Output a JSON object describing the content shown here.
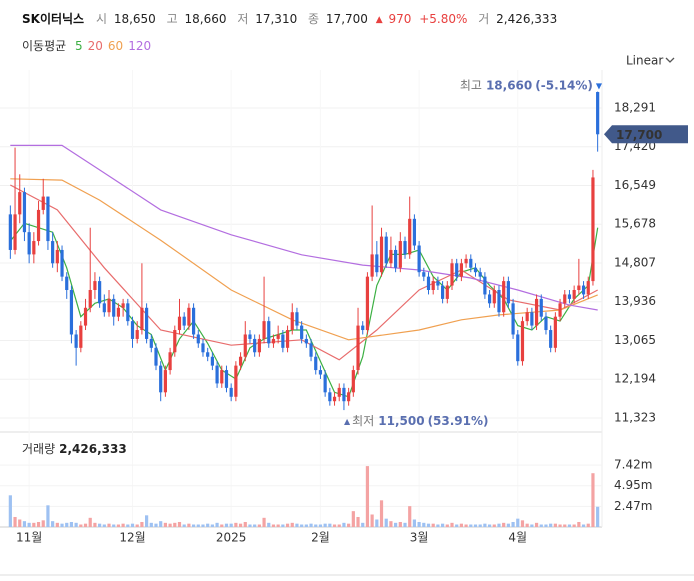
{
  "header": {
    "name": "SK이터닉스",
    "open_label": "시",
    "open": "18,650",
    "high_label": "고",
    "high": "18,660",
    "low_label": "저",
    "low": "17,310",
    "close_label": "종",
    "close": "17,700",
    "change_mark": "▲",
    "change": "970",
    "change_pct": "+5.80%",
    "volume_label": "거",
    "volume": "2,426,333"
  },
  "ma_title": "이동평균",
  "scale_selector": "Linear",
  "chart_data": [
    {
      "type": "candlestick",
      "xlim": [
        -0.5,
        125.5
      ],
      "xticks": [
        {
          "value": 4,
          "label": "11월"
        },
        {
          "value": 26,
          "label": "12월"
        },
        {
          "value": 47,
          "label": "2025"
        },
        {
          "value": 66,
          "label": "2월"
        },
        {
          "value": 87,
          "label": "3월"
        },
        {
          "value": 108,
          "label": "4월"
        }
      ],
      "ylim": [
        11053,
        19145
      ],
      "yticks": [
        {
          "value": 11323,
          "label": "11,323"
        },
        {
          "value": 12194,
          "label": "12,194"
        },
        {
          "value": 13065,
          "label": "13,065"
        },
        {
          "value": 13936,
          "label": "13,936"
        },
        {
          "value": 14807,
          "label": "14,807"
        },
        {
          "value": 15678,
          "label": "15,678"
        },
        {
          "value": 16549,
          "label": "16,549"
        },
        {
          "value": 17420,
          "label": "17,420"
        },
        {
          "value": 18291,
          "label": "18,291"
        }
      ],
      "grid": true,
      "up_color": "#e8403f",
      "down_color": "#2a6fdb",
      "ohlc": [
        [
          15900,
          16100,
          14900,
          15100
        ],
        [
          15100,
          17400,
          15000,
          15900
        ],
        [
          15900,
          16800,
          15700,
          16400
        ],
        [
          16400,
          16500,
          15300,
          15500
        ],
        [
          15500,
          15700,
          14800,
          15000
        ],
        [
          15000,
          15500,
          14800,
          15300
        ],
        [
          15300,
          16200,
          15200,
          16000
        ],
        [
          16000,
          16700,
          15900,
          16300
        ],
        [
          16300,
          16300,
          15100,
          15300
        ],
        [
          15300,
          15500,
          14700,
          14800
        ],
        [
          14800,
          15300,
          14600,
          15100
        ],
        [
          15100,
          15200,
          14400,
          14500
        ],
        [
          14500,
          14600,
          14000,
          14200
        ],
        [
          14200,
          14300,
          13000,
          13200
        ],
        [
          13200,
          13300,
          12500,
          12900
        ],
        [
          12900,
          13500,
          12800,
          13400
        ],
        [
          13400,
          14000,
          13300,
          13800
        ],
        [
          13800,
          15600,
          13700,
          14200
        ],
        [
          14200,
          14600,
          14000,
          14400
        ],
        [
          14400,
          14500,
          13800,
          13900
        ],
        [
          13900,
          14100,
          13600,
          13700
        ],
        [
          13700,
          14200,
          13600,
          14000
        ],
        [
          14000,
          14100,
          13400,
          13600
        ],
        [
          13600,
          13900,
          13500,
          13800
        ],
        [
          13800,
          14000,
          13600,
          13900
        ],
        [
          13900,
          14000,
          13400,
          13500
        ],
        [
          13500,
          13600,
          12900,
          13100
        ],
        [
          13100,
          13500,
          13000,
          13300
        ],
        [
          13300,
          14800,
          13200,
          13800
        ],
        [
          13800,
          13900,
          13000,
          13100
        ],
        [
          13100,
          13200,
          12800,
          12900
        ],
        [
          12900,
          13000,
          12400,
          12500
        ],
        [
          12500,
          12600,
          11700,
          11900
        ],
        [
          11900,
          12500,
          11800,
          12400
        ],
        [
          12400,
          12900,
          12300,
          12800
        ],
        [
          12800,
          13400,
          12700,
          13300
        ],
        [
          13300,
          14000,
          13200,
          13600
        ],
        [
          13600,
          13700,
          13300,
          13400
        ],
        [
          13400,
          13900,
          13300,
          13800
        ],
        [
          13800,
          13900,
          13100,
          13200
        ],
        [
          13200,
          13300,
          12900,
          13000
        ],
        [
          13000,
          13100,
          12700,
          12800
        ],
        [
          12800,
          12900,
          12600,
          12700
        ],
        [
          12700,
          12800,
          12400,
          12500
        ],
        [
          12500,
          12600,
          12000,
          12100
        ],
        [
          12100,
          12500,
          12000,
          12400
        ],
        [
          12400,
          12500,
          11900,
          12000
        ],
        [
          12000,
          12100,
          11700,
          11800
        ],
        [
          11800,
          12600,
          11700,
          12500
        ],
        [
          12500,
          12800,
          12400,
          12700
        ],
        [
          12700,
          13500,
          12600,
          13200
        ],
        [
          13200,
          13300,
          13000,
          13100
        ],
        [
          13100,
          13200,
          12700,
          12800
        ],
        [
          12800,
          13200,
          12700,
          13100
        ],
        [
          13100,
          14500,
          13000,
          13500
        ],
        [
          13500,
          13600,
          12900,
          13000
        ],
        [
          13000,
          13200,
          12900,
          13100
        ],
        [
          13100,
          13400,
          13000,
          13200
        ],
        [
          13200,
          13300,
          12800,
          12900
        ],
        [
          12900,
          13400,
          12800,
          13300
        ],
        [
          13300,
          13900,
          13200,
          13700
        ],
        [
          13700,
          13800,
          13300,
          13400
        ],
        [
          13400,
          13500,
          13000,
          13100
        ],
        [
          13100,
          13200,
          12900,
          13000
        ],
        [
          13000,
          13100,
          12600,
          12700
        ],
        [
          12700,
          12800,
          12300,
          12400
        ],
        [
          12400,
          12500,
          12200,
          12300
        ],
        [
          12300,
          12400,
          11800,
          11900
        ],
        [
          11900,
          12000,
          11600,
          11700
        ],
        [
          11700,
          11900,
          11600,
          11800
        ],
        [
          11800,
          12100,
          11700,
          12000
        ],
        [
          12000,
          12100,
          11500,
          11700
        ],
        [
          11700,
          12000,
          11600,
          11900
        ],
        [
          11900,
          12500,
          11800,
          12400
        ],
        [
          12400,
          13800,
          12300,
          13400
        ],
        [
          13400,
          13500,
          13200,
          13300
        ],
        [
          13300,
          14600,
          13200,
          14500
        ],
        [
          14500,
          16100,
          14400,
          15000
        ],
        [
          15000,
          15300,
          14500,
          14600
        ],
        [
          14600,
          15600,
          14500,
          15400
        ],
        [
          15400,
          15500,
          14700,
          14800
        ],
        [
          14800,
          15400,
          14700,
          15100
        ],
        [
          15100,
          15200,
          14600,
          14700
        ],
        [
          14700,
          15500,
          14600,
          15300
        ],
        [
          15300,
          15400,
          14900,
          15000
        ],
        [
          15000,
          16300,
          14900,
          15800
        ],
        [
          15800,
          15900,
          15100,
          15200
        ],
        [
          15200,
          15300,
          14500,
          14600
        ],
        [
          14600,
          14700,
          14400,
          14500
        ],
        [
          14500,
          14600,
          14100,
          14200
        ],
        [
          14200,
          14500,
          14100,
          14400
        ],
        [
          14400,
          14500,
          14200,
          14300
        ],
        [
          14300,
          14400,
          13900,
          14000
        ],
        [
          14000,
          14400,
          13900,
          14300
        ],
        [
          14300,
          14900,
          14200,
          14800
        ],
        [
          14800,
          14900,
          14400,
          14500
        ],
        [
          14500,
          14900,
          14400,
          14800
        ],
        [
          14800,
          15000,
          14700,
          14900
        ],
        [
          14900,
          15000,
          14600,
          14700
        ],
        [
          14700,
          14800,
          14500,
          14600
        ],
        [
          14600,
          14700,
          14400,
          14500
        ],
        [
          14500,
          14600,
          14000,
          14100
        ],
        [
          14100,
          14200,
          13800,
          13900
        ],
        [
          13900,
          14300,
          13800,
          14200
        ],
        [
          14200,
          14300,
          13600,
          13700
        ],
        [
          13700,
          14500,
          13600,
          14400
        ],
        [
          14400,
          14500,
          13800,
          13900
        ],
        [
          13900,
          14000,
          13100,
          13200
        ],
        [
          13200,
          13300,
          12500,
          12600
        ],
        [
          12600,
          13600,
          12500,
          13500
        ],
        [
          13500,
          13800,
          13400,
          13700
        ],
        [
          13700,
          13800,
          13300,
          13400
        ],
        [
          13400,
          14100,
          13300,
          14000
        ],
        [
          14000,
          14100,
          13500,
          13600
        ],
        [
          13600,
          13700,
          13200,
          13300
        ],
        [
          13300,
          13400,
          12800,
          12900
        ],
        [
          12900,
          13700,
          12800,
          13600
        ],
        [
          13600,
          14000,
          13500,
          13900
        ],
        [
          13900,
          14200,
          13800,
          14100
        ],
        [
          14100,
          14200,
          13900,
          14000
        ],
        [
          14000,
          14300,
          13900,
          14200
        ],
        [
          14200,
          14900,
          14100,
          14300
        ],
        [
          14300,
          14400,
          14000,
          14100
        ],
        [
          14100,
          14500,
          14000,
          14400
        ],
        [
          14400,
          16900,
          14300,
          16730
        ],
        [
          18650,
          18660,
          17310,
          17700
        ]
      ],
      "series": [
        {
          "name": "5",
          "color": "#3cb043",
          "x": [
            0,
            3,
            6,
            9,
            12,
            15,
            18,
            21,
            24,
            27,
            30,
            33,
            36,
            39,
            42,
            45,
            48,
            51,
            54,
            57,
            60,
            63,
            66,
            69,
            72,
            75,
            78,
            81,
            84,
            87,
            90,
            93,
            96,
            99,
            102,
            105,
            108,
            111,
            114,
            117,
            120,
            123,
            125
          ],
          "values": [
            15300,
            15700,
            15600,
            15500,
            14700,
            13600,
            13900,
            14000,
            13800,
            13400,
            13200,
            12400,
            13100,
            13500,
            13000,
            12400,
            12200,
            12900,
            13100,
            13200,
            13300,
            13300,
            12600,
            11900,
            11800,
            12700,
            14300,
            15000,
            15000,
            15100,
            14500,
            14200,
            14600,
            14700,
            14300,
            14000,
            13400,
            13300,
            13600,
            13500,
            14000,
            14300,
            15600
          ]
        },
        {
          "name": "20",
          "color": "#e86c6c",
          "x": [
            0,
            10,
            20,
            32,
            47,
            62,
            70,
            78,
            87,
            96,
            106,
            117,
            125
          ],
          "values": [
            16560,
            16000,
            14700,
            13300,
            12960,
            13080,
            12630,
            13300,
            14200,
            14650,
            13980,
            13750,
            14200
          ]
        },
        {
          "name": "60",
          "color": "#f0a050",
          "x": [
            0,
            11,
            19,
            32,
            47,
            60,
            72,
            87,
            96,
            104,
            117,
            125
          ],
          "values": [
            16700,
            16670,
            16220,
            15320,
            14200,
            13530,
            13080,
            13300,
            13530,
            13640,
            13750,
            14090
          ]
        },
        {
          "name": "120",
          "color": "#b36ee0",
          "x": [
            0,
            11,
            19,
            32,
            47,
            62,
            75,
            87,
            98,
            108,
            119,
            125
          ],
          "values": [
            17450,
            17450,
            16900,
            16000,
            15440,
            14990,
            14760,
            14650,
            14470,
            14200,
            13860,
            13750
          ]
        }
      ],
      "max_annotation": {
        "text": "최고",
        "value": 18660,
        "label": "18,660",
        "change": {
          "value": -5.14,
          "label": "(-5.14%)"
        },
        "mark": "▼"
      },
      "min_annotation": {
        "text": "최저",
        "value": 11500,
        "label": "11,500",
        "change": {
          "value": 53.91,
          "label": "(53.91%)"
        },
        "mark": "▲"
      },
      "last_price": {
        "value": 17700,
        "label": "17,700"
      }
    },
    {
      "type": "bar",
      "title": "거래량",
      "current_label": "2,426,333",
      "xlim": [
        -0.5,
        125.5
      ],
      "ylim": [
        0,
        10790000
      ],
      "yticks": [
        {
          "value": 2470000,
          "label": "2.47m"
        },
        {
          "value": 4950000,
          "label": "4.95m"
        },
        {
          "value": 7420000,
          "label": "7.42m"
        }
      ],
      "up_color": "#f4a3a3",
      "down_color": "#9ec1f2",
      "values": [
        3800000,
        1200000,
        900000,
        700000,
        500000,
        500000,
        600000,
        800000,
        2600000,
        700000,
        500000,
        400000,
        500000,
        600000,
        500000,
        300000,
        400000,
        1100000,
        500000,
        400000,
        300000,
        400000,
        300000,
        300000,
        400000,
        300000,
        400000,
        300000,
        600000,
        1400000,
        500000,
        400000,
        700000,
        500000,
        400000,
        500000,
        600000,
        300000,
        400000,
        300000,
        300000,
        300000,
        400000,
        300000,
        500000,
        300000,
        400000,
        400000,
        500000,
        400000,
        600000,
        300000,
        300000,
        300000,
        1100000,
        500000,
        300000,
        300000,
        300000,
        400000,
        500000,
        400000,
        300000,
        300000,
        400000,
        300000,
        300000,
        400000,
        400000,
        300000,
        300000,
        500000,
        400000,
        1900000,
        1200000,
        500000,
        7300000,
        1500000,
        900000,
        3200000,
        1000000,
        700000,
        500000,
        600000,
        500000,
        2500000,
        900000,
        600000,
        500000,
        400000,
        400000,
        300000,
        400000,
        300000,
        500000,
        300000,
        400000,
        300000,
        300000,
        300000,
        300000,
        400000,
        300000,
        300000,
        400000,
        500000,
        400000,
        600000,
        1000000,
        800000,
        400000,
        300000,
        500000,
        300000,
        300000,
        400000,
        400000,
        300000,
        300000,
        300000,
        300000,
        600000,
        300000,
        400000,
        6450000,
        2426333
      ]
    }
  ]
}
